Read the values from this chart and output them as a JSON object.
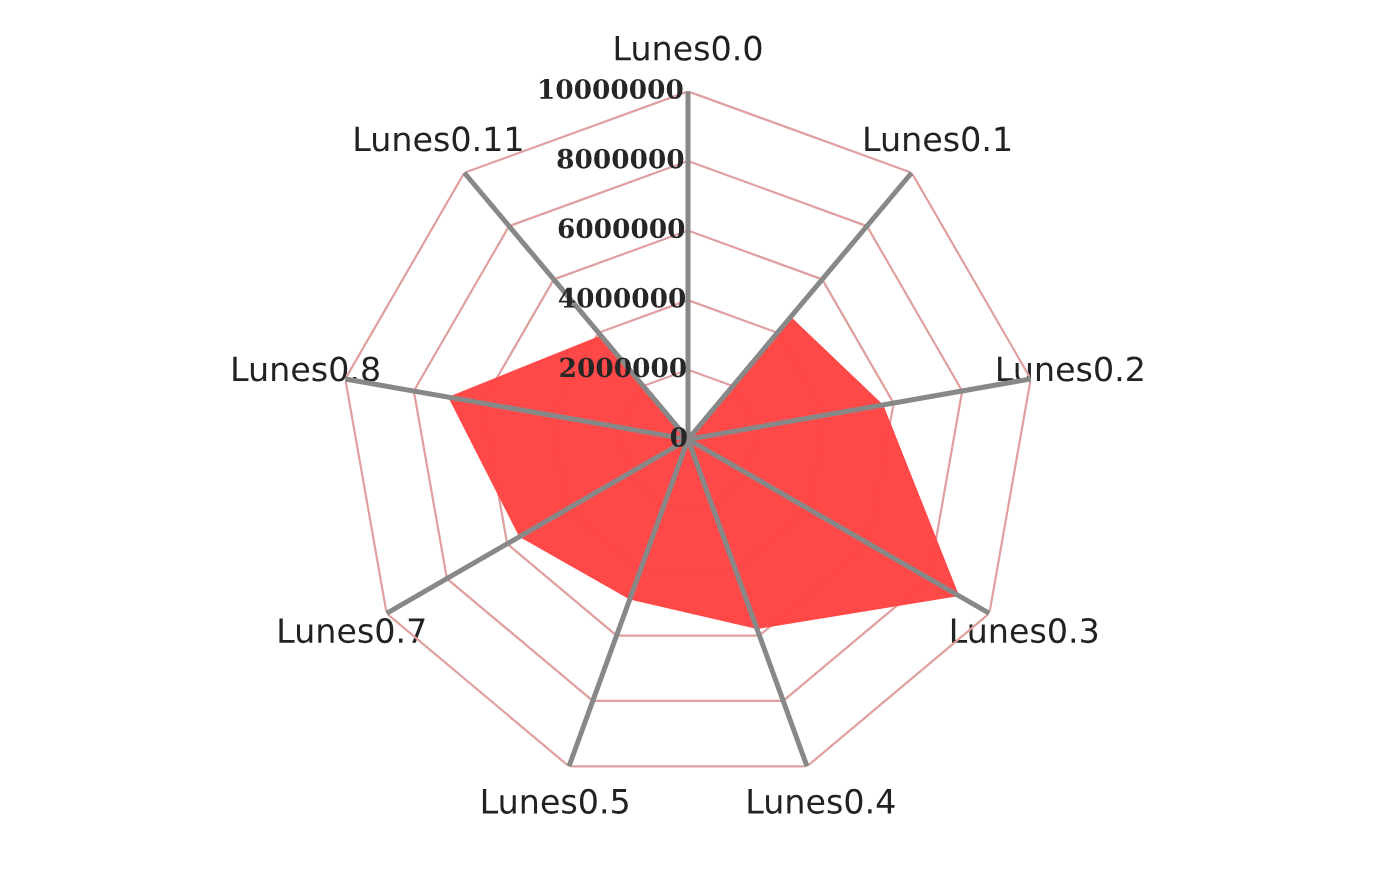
{
  "chart_data": {
    "type": "radar",
    "categories": [
      "Lunes0.0",
      "Lunes0.1",
      "Lunes0.2",
      "Lunes0.3",
      "Lunes0.4",
      "Lunes0.5",
      "Lunes0.7",
      "Lunes0.8",
      "Lunes0.11"
    ],
    "series": [
      {
        "color": "#ff4343",
        "values": [
          0,
          4600000,
          5700000,
          9000000,
          5800000,
          4900000,
          5600000,
          7000000,
          3900000
        ]
      }
    ],
    "ylim": [
      0,
      10000000
    ],
    "yticks": [
      0,
      2000000,
      4000000,
      6000000,
      8000000,
      10000000
    ],
    "grid": true
  }
}
